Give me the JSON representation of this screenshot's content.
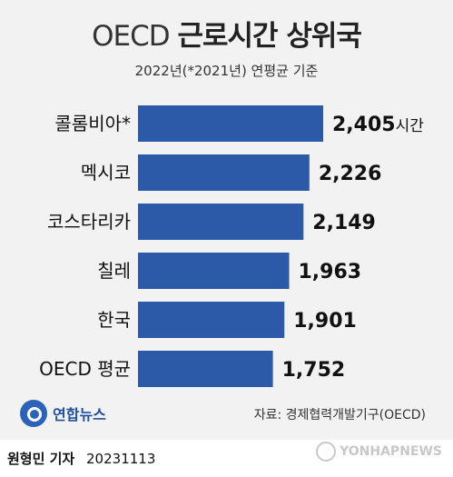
{
  "header": {
    "title_prefix": "OECD",
    "title_main": "근로시간 상위국",
    "subtitle": "2022년(*2021년) 연평균 기준"
  },
  "chart_data": {
    "type": "bar",
    "orientation": "horizontal",
    "categories": [
      "콜롬비아*",
      "멕시코",
      "코스타리카",
      "칠레",
      "한국",
      "OECD 평균"
    ],
    "values": [
      2405,
      2226,
      2149,
      1963,
      1901,
      1752
    ],
    "value_labels": [
      "2,405",
      "2,226",
      "2,149",
      "1,963",
      "1,901",
      "1,752"
    ],
    "unit": "시간",
    "bar_color": "#2d5aa8"
  },
  "footer": {
    "logo_text": "연합뉴스",
    "source": "자료: 경제협력개발기구(OECD)",
    "reporter": "원형민 기자",
    "date": "20231113",
    "watermark": "YONHAPNEWS"
  }
}
